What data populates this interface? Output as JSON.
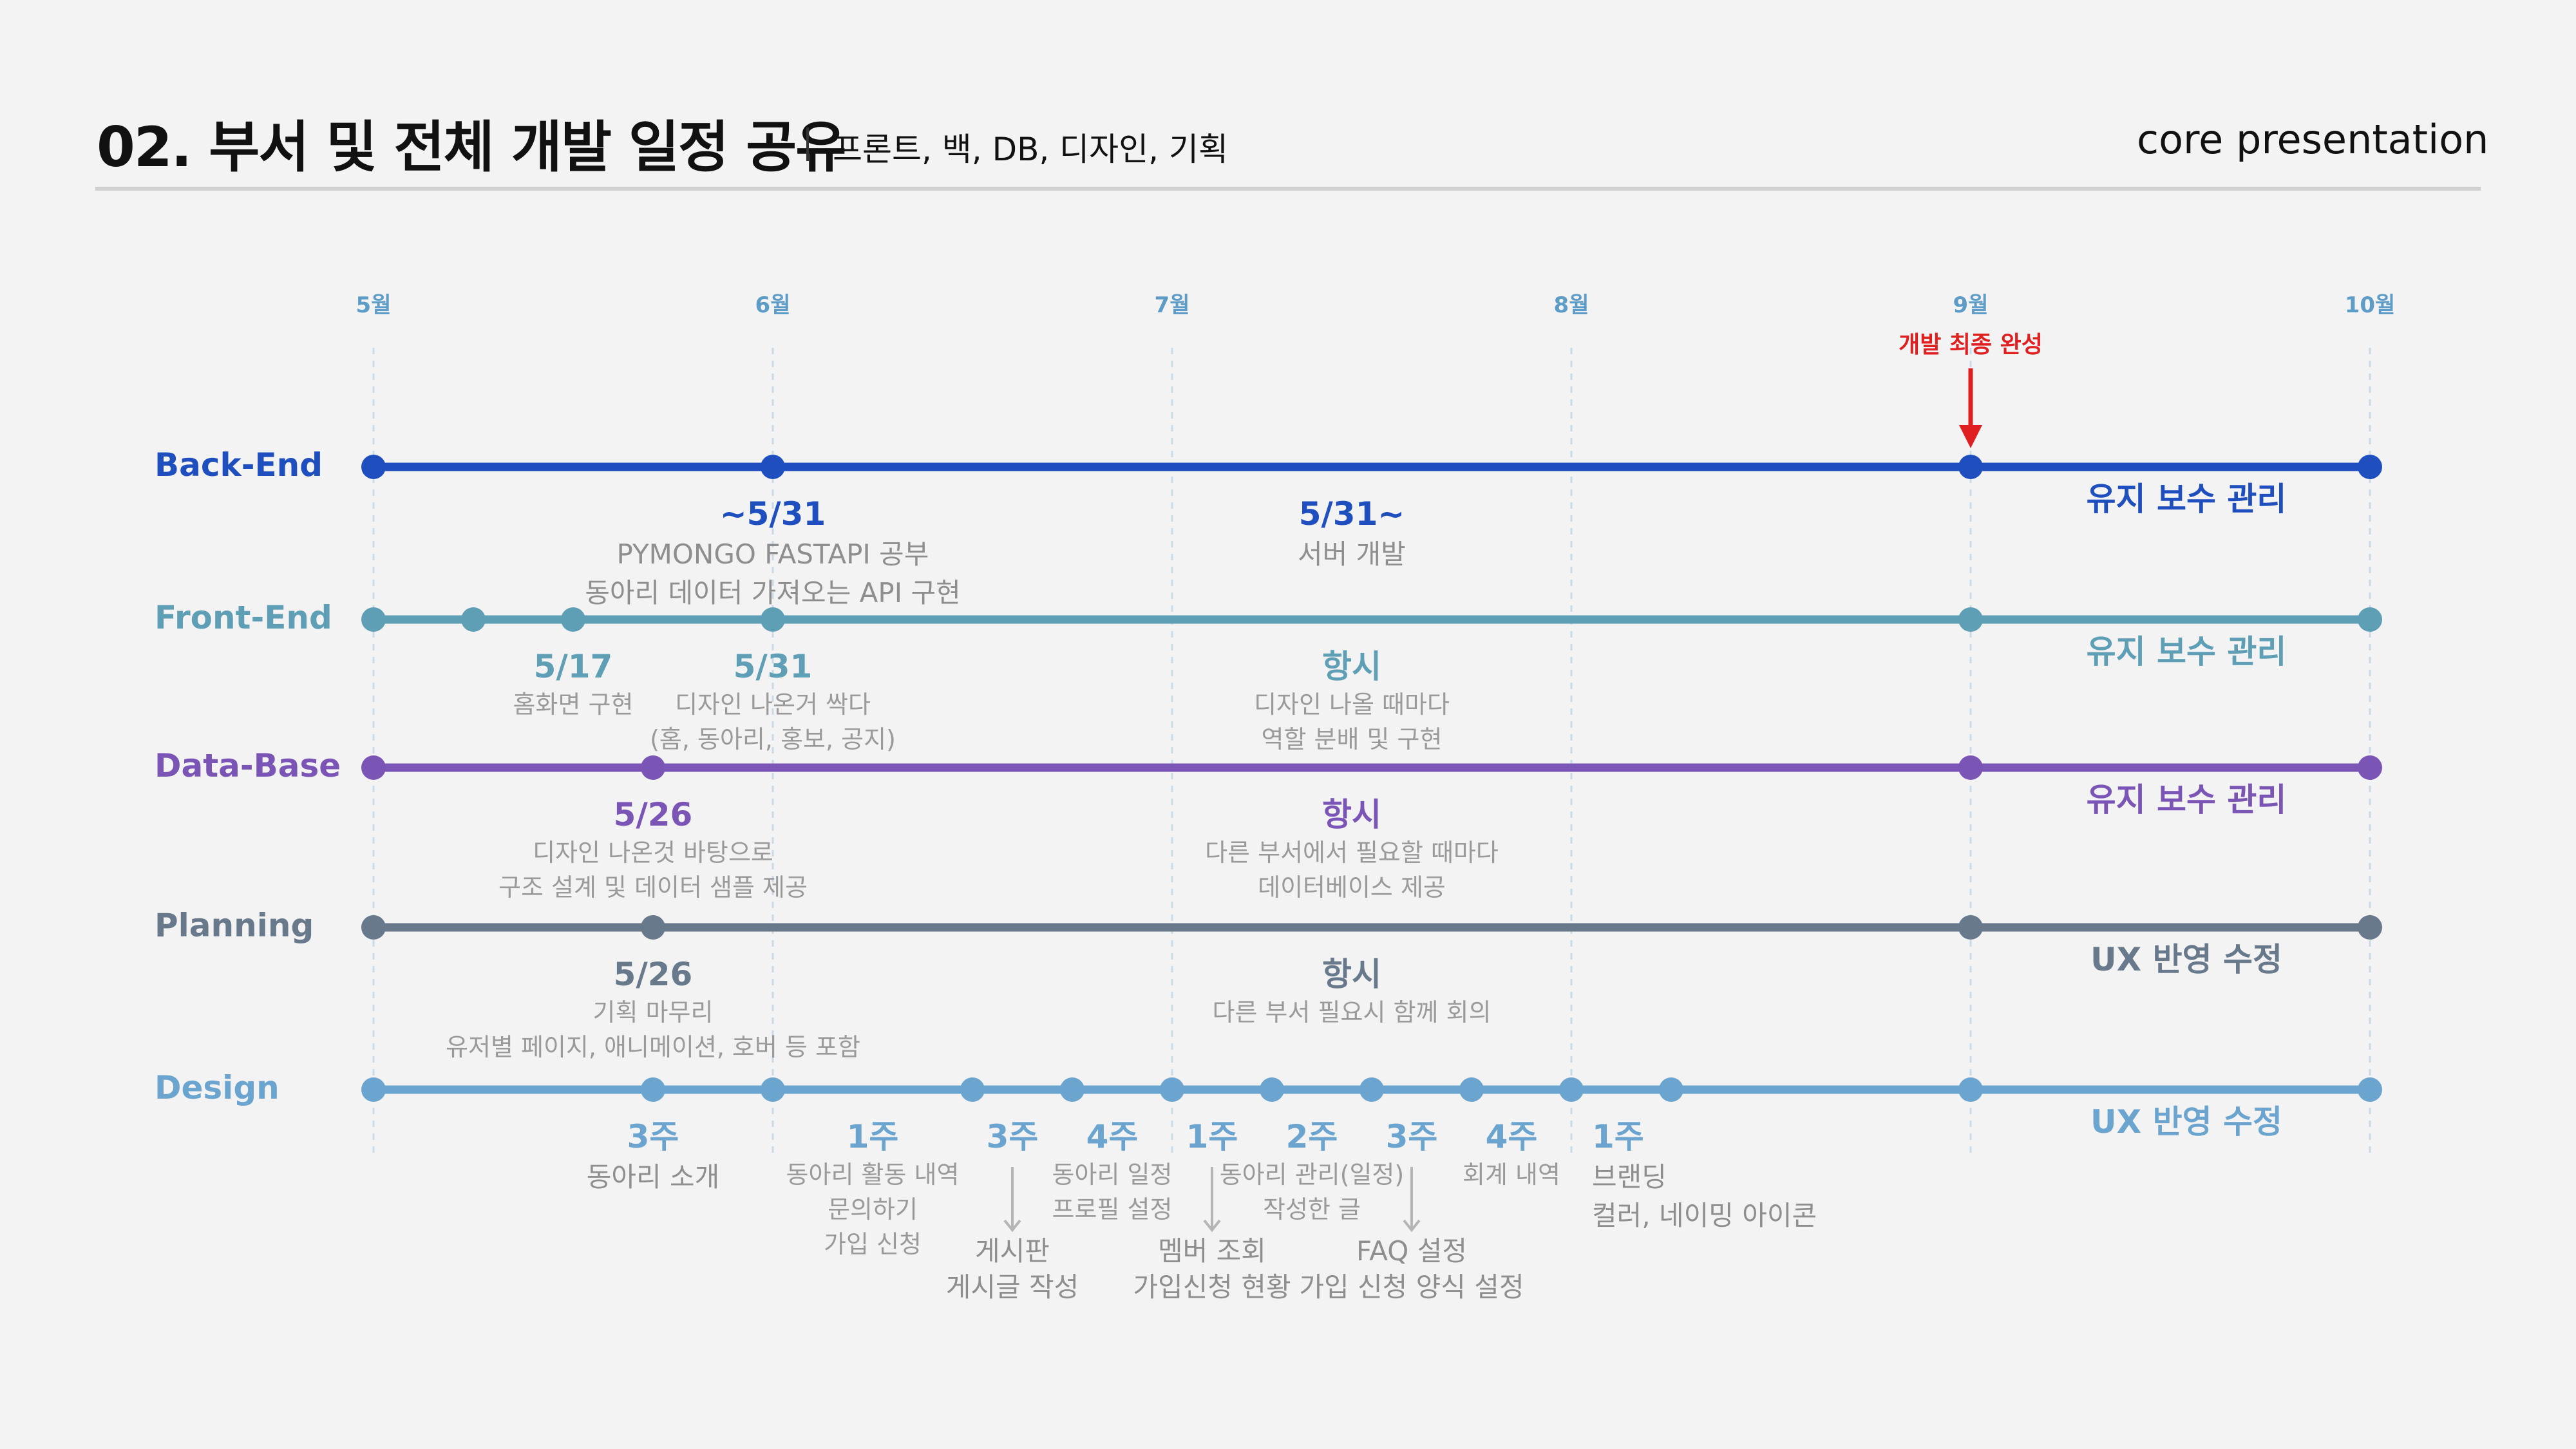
{
  "header": {
    "title": "02. 부서 및 전체 개발 일정 공유",
    "subtitle": "프론트, 백, DB, 디자인, 기획",
    "brand": "core presentation"
  },
  "colors": {
    "backend": "#1f4fbf",
    "frontend": "#5e9fb6",
    "database": "#7b55b5",
    "planning": "#67798a",
    "design": "#6ba5cf",
    "month": "#5e9cc8",
    "deadline": "#e02020",
    "desc": "#9a9a9a"
  },
  "months": [
    "5월",
    "6월",
    "7월",
    "8월",
    "9월",
    "10월"
  ],
  "deadline": {
    "month_index": 4,
    "label": "개발 최종 완성"
  },
  "rows": [
    {
      "key": "backend",
      "label": "Back-End",
      "color_key": "backend",
      "dots": [
        0,
        1,
        4,
        5
      ],
      "end_label": "유지 보수 관리",
      "annotations": [
        {
          "title": "~5/31",
          "lines": [
            "PYMONGO FASTAPI 공부",
            "동아리 데이터 가져오는 API 구현"
          ],
          "pos": 1,
          "size": "lg"
        },
        {
          "title": "5/31~",
          "lines": [
            "서버 개발"
          ],
          "pos": 2.45,
          "size": "lg"
        }
      ]
    },
    {
      "key": "frontend",
      "label": "Front-End",
      "color_key": "frontend",
      "dots": [
        0,
        0.25,
        0.5,
        1,
        4,
        5
      ],
      "end_label": "유지 보수 관리",
      "annotations": [
        {
          "title": "5/17",
          "lines": [
            "홈화면 구현"
          ],
          "pos": 0.5
        },
        {
          "title": "5/31",
          "lines": [
            "디자인 나온거 싹다",
            "(홈, 동아리, 홍보, 공지)"
          ],
          "pos": 1
        },
        {
          "title": "항시",
          "lines": [
            "디자인 나올 때마다",
            "역할 분배 및 구현"
          ],
          "pos": 2.45
        }
      ]
    },
    {
      "key": "database",
      "label": "Data-Base",
      "color_key": "database",
      "dots": [
        0,
        0.7,
        4,
        5
      ],
      "end_label": "유지 보수 관리",
      "annotations": [
        {
          "title": "5/26",
          "lines": [
            "디자인 나온것 바탕으로",
            "구조 설계 및 데이터 샘플 제공"
          ],
          "pos": 0.7
        },
        {
          "title": "항시",
          "lines": [
            "다른 부서에서 필요할 때마다",
            "데이터베이스 제공"
          ],
          "pos": 2.45
        }
      ]
    },
    {
      "key": "planning",
      "label": "Planning",
      "color_key": "planning",
      "dots": [
        0,
        0.7,
        4,
        5
      ],
      "end_label": "UX 반영 수정",
      "annotations": [
        {
          "title": "5/26",
          "lines": [
            "기획 마무리",
            "유저별 페이지, 애니메이션, 호버 등 포함"
          ],
          "pos": 0.7
        },
        {
          "title": "항시",
          "lines": [
            "다른 부서 필요시 함께 회의"
          ],
          "pos": 2.45
        }
      ]
    },
    {
      "key": "design",
      "label": "Design",
      "color_key": "design",
      "dots": [
        0,
        0.7,
        1,
        1.5,
        1.75,
        2,
        2.25,
        2.5,
        2.75,
        3,
        3.25,
        4,
        5
      ],
      "end_label": "UX 반영 수정",
      "annotations": [
        {
          "title": "3주",
          "lines": [
            "동아리 소개"
          ],
          "pos": 0.7,
          "size": "lg"
        },
        {
          "title": "1주",
          "lines": [
            "동아리 활동 내역",
            "문의하기",
            "가입 신청"
          ],
          "pos": 1.25
        },
        {
          "title": "3주",
          "lines": [],
          "pos": 1.6,
          "arrow": true,
          "below": [
            "게시판",
            "게시글 작성"
          ]
        },
        {
          "title": "4주",
          "lines": [
            "동아리 일정",
            "프로필 설정"
          ],
          "pos": 1.85
        },
        {
          "title": "1주",
          "lines": [],
          "pos": 2.1,
          "arrow": true,
          "below": [
            "멤버 조회",
            "가입신청 현황"
          ]
        },
        {
          "title": "2주",
          "lines": [
            "동아리 관리(일정)",
            "작성한 글"
          ],
          "pos": 2.35
        },
        {
          "title": "3주",
          "lines": [],
          "pos": 2.6,
          "arrow": true,
          "below": [
            "FAQ 설정",
            "가입 신청 양식 설정"
          ]
        },
        {
          "title": "4주",
          "lines": [
            "회계 내역"
          ],
          "pos": 2.85
        },
        {
          "title": "1주",
          "lines": [
            "브랜딩",
            "컬러, 네이밍 아이콘"
          ],
          "pos": 3.1,
          "size": "lg",
          "align": "left"
        }
      ]
    }
  ]
}
